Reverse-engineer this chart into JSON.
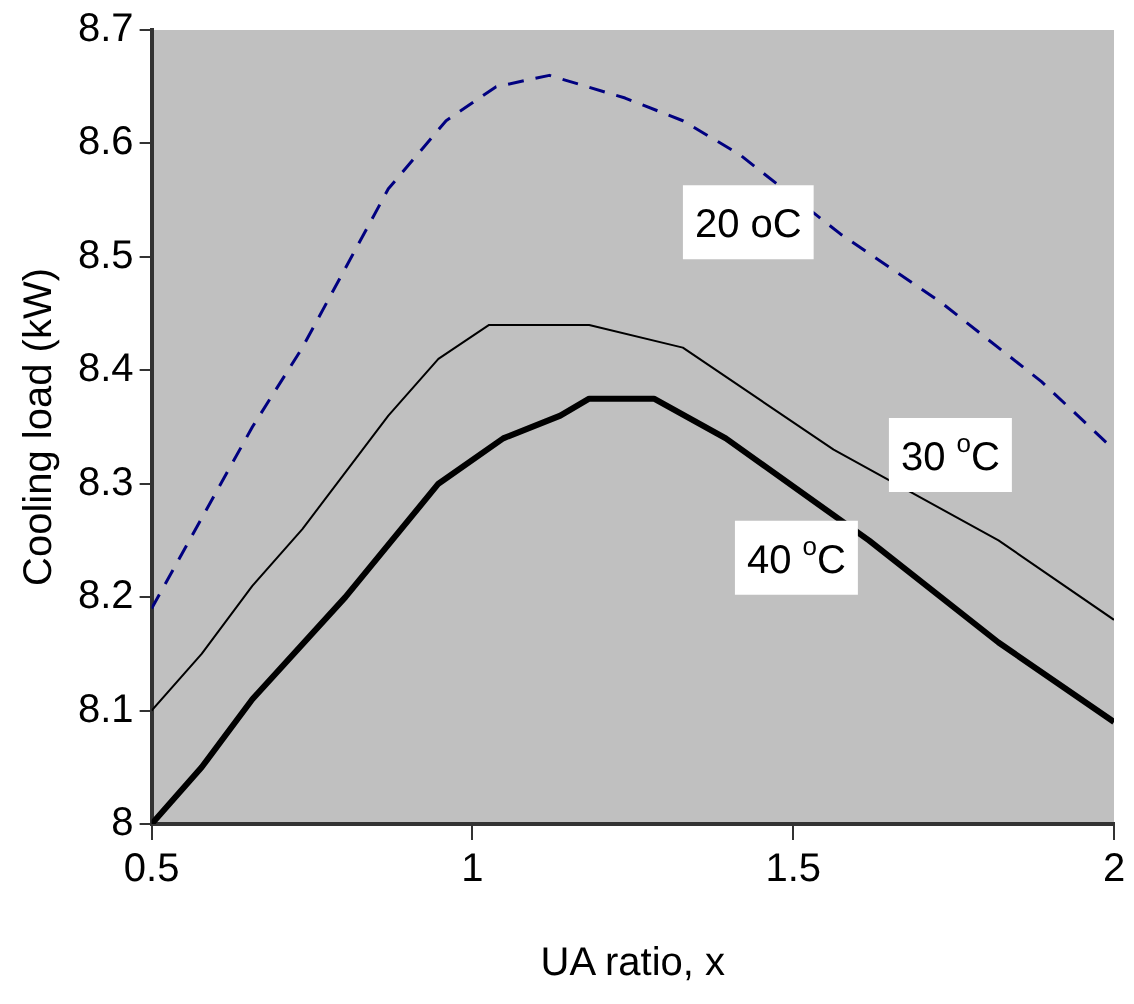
{
  "chart_data": {
    "type": "line",
    "xlabel": "UA ratio, x",
    "ylabel": "Cooling load (kW)",
    "xlim": [
      0.5,
      2
    ],
    "xticks": [
      0.5,
      1,
      1.5,
      2
    ],
    "ylim": [
      8,
      8.7
    ],
    "yticks": [
      8,
      8.1,
      8.2,
      8.3,
      8.4,
      8.5,
      8.6,
      8.7
    ],
    "grid": false,
    "legend": false,
    "marker": "none",
    "series": [
      {
        "name": "20 oC",
        "color": "#000080",
        "line_style": "dashed",
        "x": [
          0.5,
          0.657,
          0.735,
          0.802,
          0.869,
          0.959,
          1.037,
          1.12,
          1.238,
          1.328,
          1.417,
          1.574,
          1.73,
          1.887,
          2.0
        ],
        "values": [
          8.19,
          8.35,
          8.42,
          8.49,
          8.56,
          8.62,
          8.65,
          8.66,
          8.64,
          8.62,
          8.59,
          8.52,
          8.46,
          8.39,
          8.33
        ]
      },
      {
        "name": "30 $^{o}$C",
        "color": "#000000",
        "line_style": "solid",
        "x": [
          0.5,
          0.578,
          0.657,
          0.735,
          0.802,
          0.869,
          0.947,
          1.026,
          1.12,
          1.182,
          1.328,
          1.563,
          1.82,
          2.0
        ],
        "values": [
          8.1,
          8.15,
          8.21,
          8.26,
          8.31,
          8.36,
          8.41,
          8.44,
          8.44,
          8.44,
          8.42,
          8.33,
          8.25,
          8.18
        ]
      },
      {
        "name": "40 $^{o}$C",
        "color": "#000000",
        "line_style": "solid",
        "x": [
          0.5,
          0.578,
          0.657,
          0.802,
          0.947,
          1.048,
          1.137,
          1.182,
          1.283,
          1.395,
          1.618,
          1.82,
          2.0
        ],
        "values": [
          8.0,
          8.05,
          8.11,
          8.2,
          8.3,
          8.34,
          8.36,
          8.375,
          8.375,
          8.34,
          8.25,
          8.16,
          8.09
        ]
      }
    ]
  }
}
